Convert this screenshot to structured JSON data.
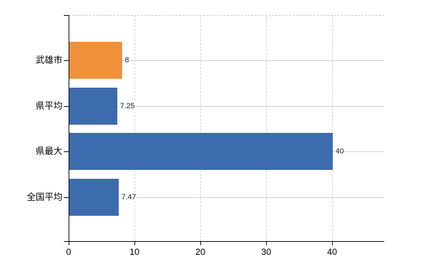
{
  "chart_data": {
    "type": "bar",
    "orientation": "horizontal",
    "title": "",
    "xlabel": "",
    "ylabel": "",
    "categories": [
      "武雄市",
      "県平均",
      "県最大",
      "全国平均"
    ],
    "values": [
      8,
      7.25,
      40,
      7.47
    ],
    "value_labels": [
      "8",
      "7.25",
      "40",
      "7.47"
    ],
    "bar_colors": [
      "#ef9139",
      "#3d6cae",
      "#3d6cae",
      "#3d6cae"
    ],
    "x_ticks": [
      0,
      10,
      20,
      30,
      40
    ],
    "x_tick_labels": [
      "0",
      "10",
      "20",
      "30",
      "40"
    ],
    "xlim": [
      0,
      47.9
    ],
    "grid": true,
    "legend": false,
    "colors": {
      "highlight_bar": "#ef9139",
      "default_bar": "#3d6cae",
      "gridline": "#cccccc",
      "axis": "#000000",
      "background": "#ffffff",
      "text": "#000000"
    }
  }
}
